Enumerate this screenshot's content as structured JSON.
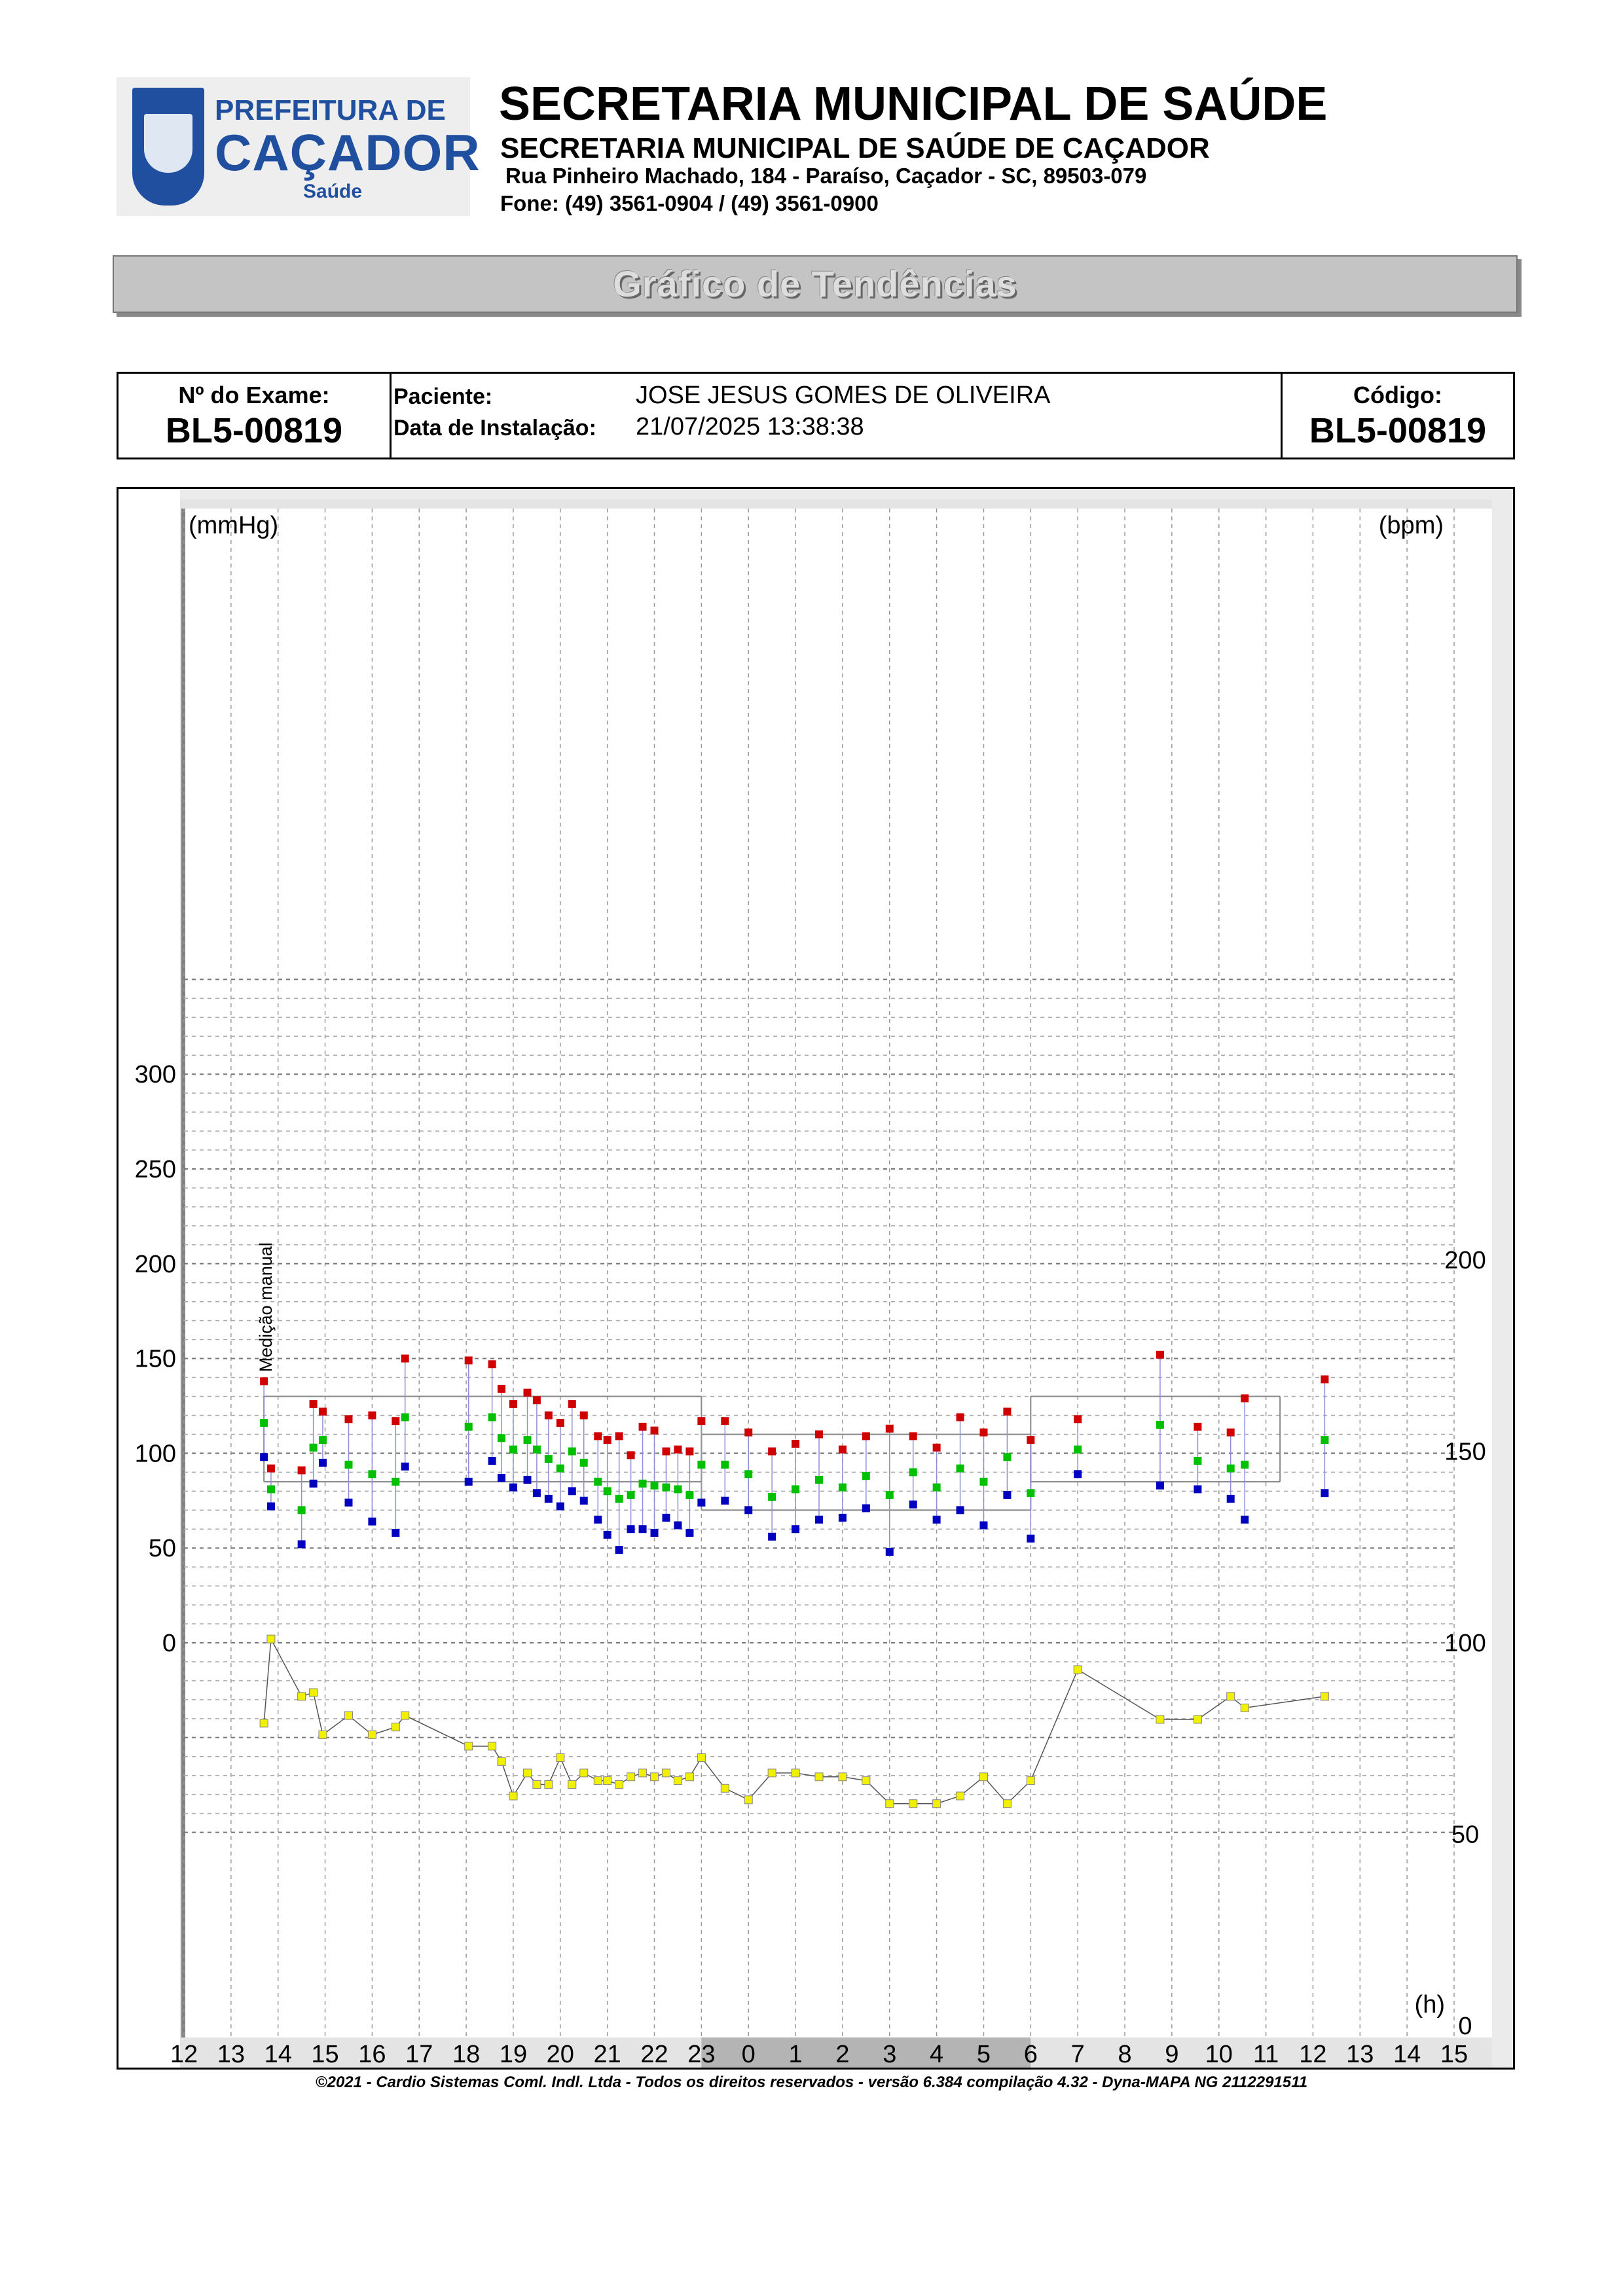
{
  "header": {
    "logo_line1": "PREFEITURA DE",
    "logo_line2": "CAÇADOR",
    "logo_line3": "Saúde",
    "title": "SECRETARIA MUNICIPAL DE SAÚDE",
    "subtitle": "SECRETARIA MUNICIPAL DE SAÚDE DE CAÇADOR",
    "address": "Rua Pinheiro Machado, 184 - Paraíso, Caçador - SC, 89503-079",
    "phone": "Fone: (49) 3561-0904  / (49) 3561-0900"
  },
  "banner": "Gráfico de Tendências",
  "exam": {
    "exam_label": "Nº do Exame:",
    "exam_number": "BL5-00819",
    "patient_label": "Paciente:",
    "patient_name": "JOSE JESUS GOMES DE OLIVEIRA",
    "install_label": "Data de Instalação:",
    "install_date": "21/07/2025 13:38:38",
    "code_label": "Código:",
    "code": "BL5-00819"
  },
  "chart_data": {
    "type": "scatter",
    "left_unit": "(mmHg)",
    "right_unit": "(bpm)",
    "x_unit": "(h)",
    "annotation": "Medição manual",
    "x_tick_labels": [
      "12",
      "13",
      "14",
      "15",
      "16",
      "17",
      "18",
      "19",
      "20",
      "21",
      "22",
      "23",
      "0",
      "1",
      "2",
      "3",
      "4",
      "5",
      "6",
      "7",
      "8",
      "9",
      "10",
      "11",
      "12",
      "13",
      "14",
      "15"
    ],
    "left_ticks": [
      "0",
      "50",
      "100",
      "150",
      "200",
      "250",
      "300"
    ],
    "right_ticks": [
      "0",
      "50",
      "100",
      "150",
      "200"
    ],
    "left_ylim": [
      0,
      300
    ],
    "right_ylim": [
      0,
      200
    ],
    "x_range_hours": [
      12,
      39
    ],
    "sleep_period_hours": [
      23,
      30
    ],
    "reference_bands": [
      {
        "period": "wake",
        "x": [
          13.7,
          23
        ],
        "systolic": 130,
        "diastolic": 85
      },
      {
        "period": "sleep",
        "x": [
          23,
          30
        ],
        "systolic": 110,
        "diastolic": 70
      },
      {
        "period": "wake",
        "x": [
          30,
          35.3
        ],
        "systolic": 130,
        "diastolic": 85
      }
    ],
    "colors": {
      "systolic": "#d00000",
      "mean": "#00c000",
      "diastolic": "#0000c0",
      "heart_rate": "#f0f000",
      "link": "#8f8fd8",
      "grid": "#999999"
    },
    "readings": [
      {
        "t": 13.7,
        "sys": 138,
        "mean": 116,
        "dia": 98,
        "hr": 79
      },
      {
        "t": 13.85,
        "sys": 92,
        "mean": 81,
        "dia": 72,
        "hr": 101
      },
      {
        "t": 14.5,
        "sys": 91,
        "mean": 70,
        "dia": 52,
        "hr": 86
      },
      {
        "t": 14.75,
        "sys": 126,
        "mean": 103,
        "dia": 84,
        "hr": 87
      },
      {
        "t": 14.95,
        "sys": 122,
        "mean": 107,
        "dia": 95,
        "hr": 76
      },
      {
        "t": 15.5,
        "sys": 118,
        "mean": 94,
        "dia": 74,
        "hr": 81
      },
      {
        "t": 16.0,
        "sys": 120,
        "mean": 89,
        "dia": 64,
        "hr": 76
      },
      {
        "t": 16.5,
        "sys": 117,
        "mean": 85,
        "dia": 58,
        "hr": 78
      },
      {
        "t": 16.7,
        "sys": 150,
        "mean": 119,
        "dia": 93,
        "hr": 81
      },
      {
        "t": 18.05,
        "sys": 149,
        "mean": 114,
        "dia": 85,
        "hr": 73
      },
      {
        "t": 18.55,
        "sys": 147,
        "mean": 119,
        "dia": 96,
        "hr": 73
      },
      {
        "t": 18.75,
        "sys": 134,
        "mean": 108,
        "dia": 87,
        "hr": 69
      },
      {
        "t": 19.0,
        "sys": 126,
        "mean": 102,
        "dia": 82,
        "hr": 60
      },
      {
        "t": 19.3,
        "sys": 132,
        "mean": 107,
        "dia": 86,
        "hr": 66
      },
      {
        "t": 19.5,
        "sys": 128,
        "mean": 102,
        "dia": 79,
        "hr": 63
      },
      {
        "t": 19.75,
        "sys": 120,
        "mean": 97,
        "dia": 76,
        "hr": 63
      },
      {
        "t": 20.0,
        "sys": 116,
        "mean": 92,
        "dia": 72,
        "hr": 70
      },
      {
        "t": 20.25,
        "sys": 126,
        "mean": 101,
        "dia": 80,
        "hr": 63
      },
      {
        "t": 20.5,
        "sys": 120,
        "mean": 95,
        "dia": 75,
        "hr": 66
      },
      {
        "t": 20.8,
        "sys": 109,
        "mean": 85,
        "dia": 65,
        "hr": 64
      },
      {
        "t": 21.0,
        "sys": 107,
        "mean": 80,
        "dia": 57,
        "hr": 64
      },
      {
        "t": 21.25,
        "sys": 109,
        "mean": 76,
        "dia": 49,
        "hr": 63
      },
      {
        "t": 21.5,
        "sys": 99,
        "mean": 78,
        "dia": 60,
        "hr": 65
      },
      {
        "t": 21.75,
        "sys": 114,
        "mean": 84,
        "dia": 60,
        "hr": 66
      },
      {
        "t": 22.0,
        "sys": 112,
        "mean": 83,
        "dia": 58,
        "hr": 65
      },
      {
        "t": 22.25,
        "sys": 101,
        "mean": 82,
        "dia": 66,
        "hr": 66
      },
      {
        "t": 22.5,
        "sys": 102,
        "mean": 81,
        "dia": 62,
        "hr": 64
      },
      {
        "t": 22.75,
        "sys": 101,
        "mean": 78,
        "dia": 58,
        "hr": 65
      },
      {
        "t": 23.0,
        "sys": 117,
        "mean": 94,
        "dia": 74,
        "hr": 70
      },
      {
        "t": 23.5,
        "sys": 117,
        "mean": 94,
        "dia": 75,
        "hr": 62
      },
      {
        "t": 24.0,
        "sys": 111,
        "mean": 89,
        "dia": 70,
        "hr": 59
      },
      {
        "t": 24.5,
        "sys": 101,
        "mean": 77,
        "dia": 56,
        "hr": 66
      },
      {
        "t": 25.0,
        "sys": 105,
        "mean": 81,
        "dia": 60,
        "hr": 66
      },
      {
        "t": 25.5,
        "sys": 110,
        "mean": 86,
        "dia": 65,
        "hr": 65
      },
      {
        "t": 26.0,
        "sys": 102,
        "mean": 82,
        "dia": 66,
        "hr": 65
      },
      {
        "t": 26.5,
        "sys": 109,
        "mean": 88,
        "dia": 71,
        "hr": 64
      },
      {
        "t": 27.0,
        "sys": 113,
        "mean": 78,
        "dia": 48,
        "hr": 58
      },
      {
        "t": 27.5,
        "sys": 109,
        "mean": 90,
        "dia": 73,
        "hr": 58
      },
      {
        "t": 28.0,
        "sys": 103,
        "mean": 82,
        "dia": 65,
        "hr": 58
      },
      {
        "t": 28.5,
        "sys": 119,
        "mean": 92,
        "dia": 70,
        "hr": 60
      },
      {
        "t": 29.0,
        "sys": 111,
        "mean": 85,
        "dia": 62,
        "hr": 65
      },
      {
        "t": 29.5,
        "sys": 122,
        "mean": 98,
        "dia": 78,
        "hr": 58
      },
      {
        "t": 30.0,
        "sys": 107,
        "mean": 79,
        "dia": 55,
        "hr": 64
      },
      {
        "t": 31.0,
        "sys": 118,
        "mean": 102,
        "dia": 89,
        "hr": 93
      },
      {
        "t": 32.75,
        "sys": 152,
        "mean": 115,
        "dia": 83,
        "hr": 80
      },
      {
        "t": 33.55,
        "sys": 114,
        "mean": 96,
        "dia": 81,
        "hr": 80
      },
      {
        "t": 34.25,
        "sys": 111,
        "mean": 92,
        "dia": 76,
        "hr": 86
      },
      {
        "t": 34.55,
        "sys": 129,
        "mean": 94,
        "dia": 65,
        "hr": 83
      },
      {
        "t": 36.25,
        "sys": 139,
        "mean": 107,
        "dia": 79,
        "hr": 86
      }
    ]
  },
  "footer": "©2021 - Cardio Sistemas Coml. Indl. Ltda - Todos os direitos reservados - versão 6.384 compilação 4.32 - Dyna-MAPA NG 2112291511"
}
